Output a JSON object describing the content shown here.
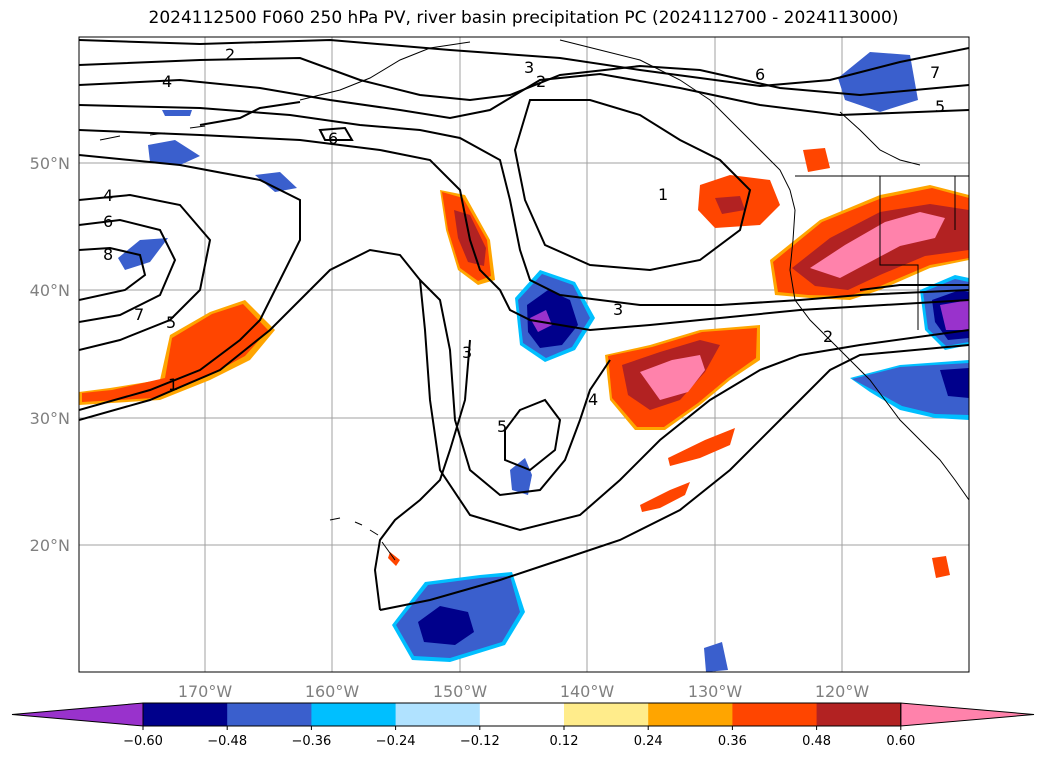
{
  "title": "2024112500 F060 250 hPa PV, river basin precipitation PC (2024112700 - 2024113000)",
  "axes": {
    "lon_labels": [
      "170°W",
      "160°W",
      "150°W",
      "140°W",
      "130°W",
      "120°W"
    ],
    "lat_labels": [
      "50°N",
      "40°N",
      "30°N",
      "20°N"
    ]
  },
  "pv_contour_labels": [
    "2",
    "4",
    "3",
    "2",
    "6",
    "7",
    "5",
    "6",
    "4",
    "6",
    "8",
    "7",
    "5",
    "1",
    "1",
    "3",
    "3",
    "5",
    "4",
    "2"
  ],
  "colorbar": {
    "colors": [
      "#9932cc",
      "#00008b",
      "#3a5fcd",
      "#00bfff",
      "#b0e2ff",
      "#ffffff",
      "#ffec8b",
      "#ffa500",
      "#ff4500",
      "#b22222",
      "#ff82ab"
    ],
    "tick_labels": [
      "−0.60",
      "−0.48",
      "−0.36",
      "−0.24",
      "−0.12",
      "0.12",
      "0.24",
      "0.36",
      "0.48",
      "0.60"
    ]
  }
}
